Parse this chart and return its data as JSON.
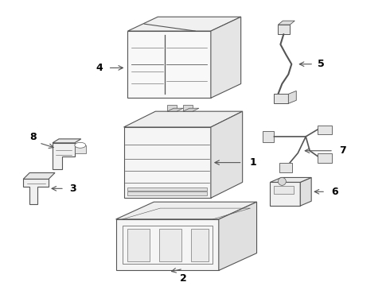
{
  "bg_color": "#ffffff",
  "line_color": "#555555",
  "label_color": "#000000",
  "lw": 0.8
}
